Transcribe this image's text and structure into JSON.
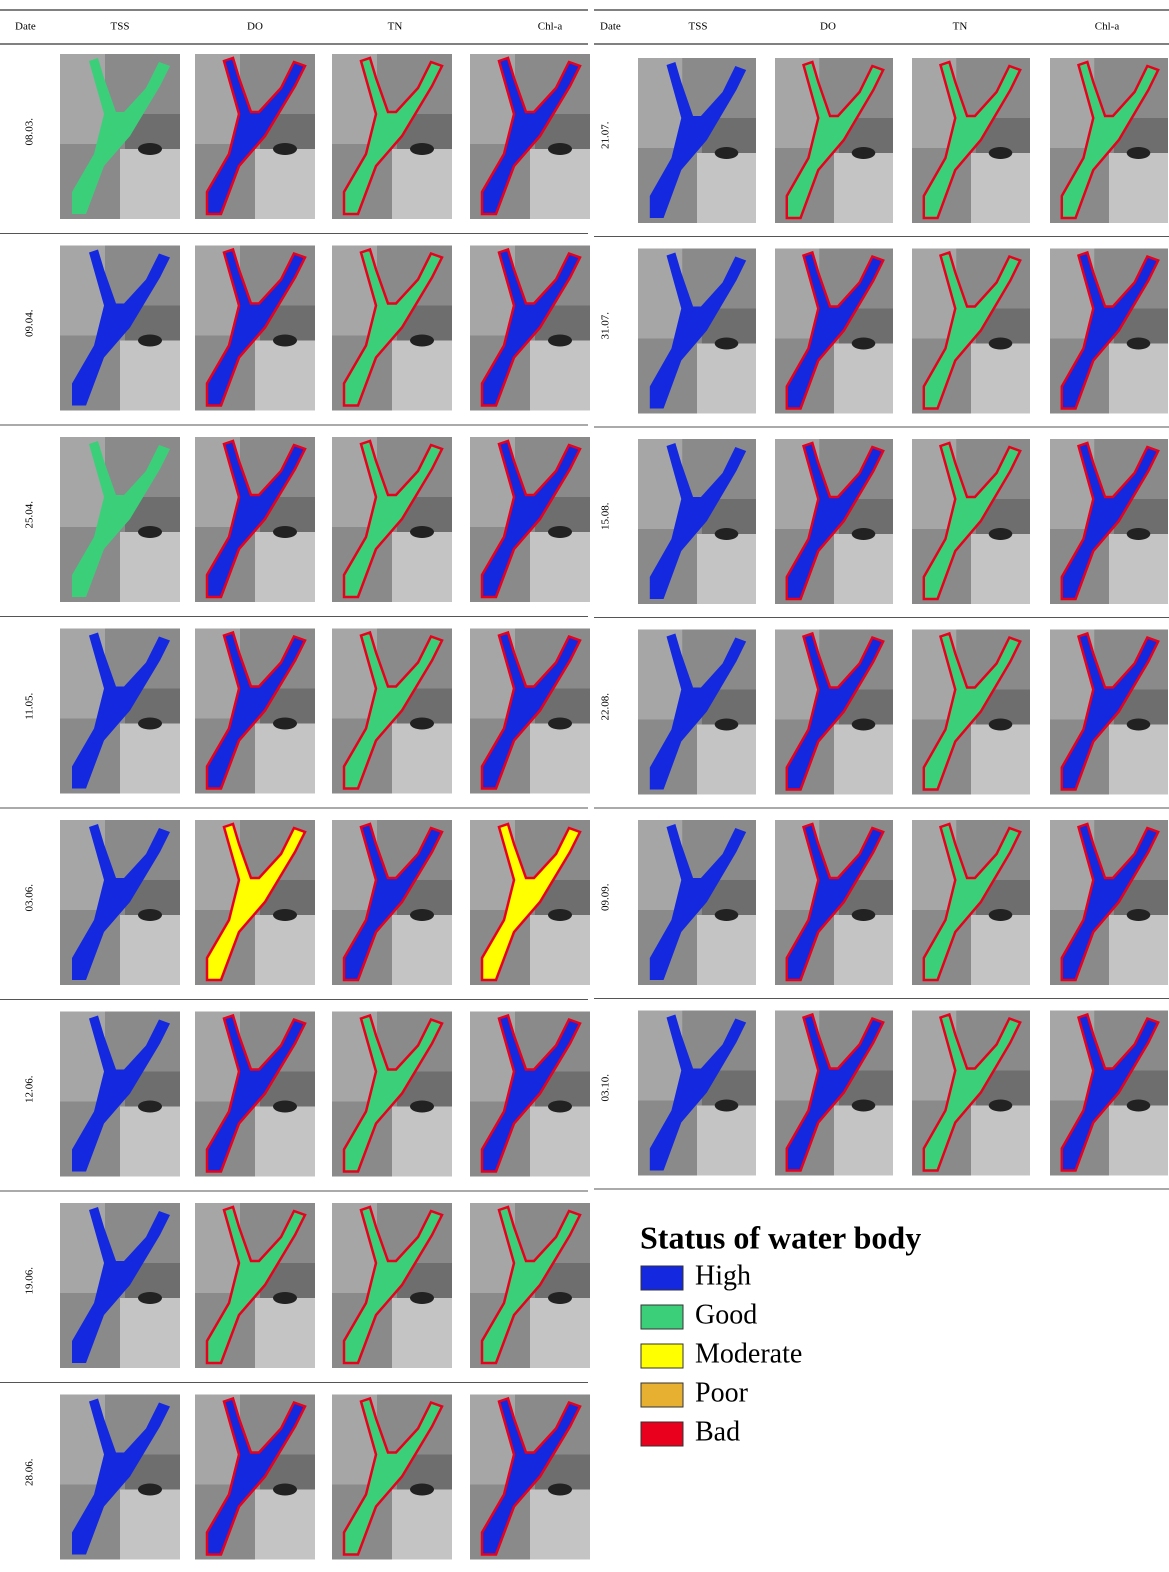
{
  "left_table": {
    "header": [
      "Date",
      "TSS",
      "DO",
      "TN",
      "Chl-a"
    ],
    "dates": [
      "08.03.",
      "09.04.",
      "25.04.",
      "11.05.",
      "03.06.",
      "12.06.",
      "19.06.",
      "28.06."
    ]
  },
  "right_table": {
    "header": [
      "Date",
      "TSS",
      "DO",
      "TN",
      "Chl-a"
    ],
    "dates": [
      "21.07.",
      "31.07.",
      "15.08.",
      "22.08.",
      "09.09.",
      "03.10."
    ]
  },
  "legend": {
    "title": "Status of water body",
    "items": [
      {
        "label": "High",
        "color": "#1428e0"
      },
      {
        "label": "Good",
        "color": "#3ccf7a"
      },
      {
        "label": "Moderate",
        "color": "#ffff00"
      },
      {
        "label": "Poor",
        "color": "#e8b030"
      },
      {
        "label": "Bad",
        "color": "#e8001c"
      }
    ]
  }
}
